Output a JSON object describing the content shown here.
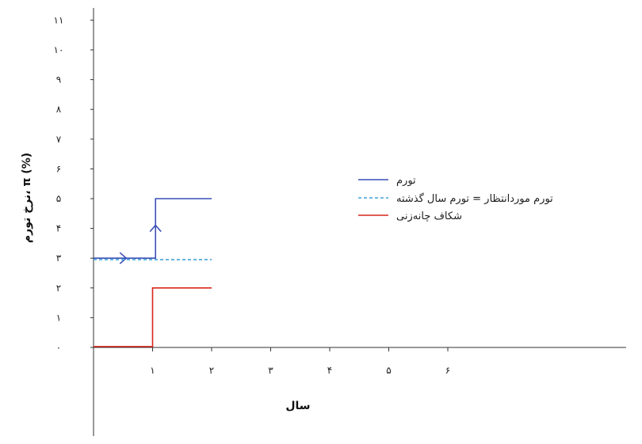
{
  "chart_data": {
    "type": "line",
    "xlabel": "سال",
    "ylabel": "نرخ تورم، π (%)",
    "xlim": [
      0,
      9
    ],
    "ylim": [
      0,
      11
    ],
    "x_ticks": [
      {
        "value": 1,
        "label": "۱"
      },
      {
        "value": 2,
        "label": "۲"
      },
      {
        "value": 3,
        "label": "۳"
      },
      {
        "value": 4,
        "label": "۴"
      },
      {
        "value": 5,
        "label": "۵"
      },
      {
        "value": 6,
        "label": "۶"
      }
    ],
    "y_ticks": [
      {
        "value": 0,
        "label": "۰"
      },
      {
        "value": 1,
        "label": "۱"
      },
      {
        "value": 2,
        "label": "۲"
      },
      {
        "value": 3,
        "label": "۳"
      },
      {
        "value": 4,
        "label": "۴"
      },
      {
        "value": 5,
        "label": "۵"
      },
      {
        "value": 6,
        "label": "۶"
      },
      {
        "value": 7,
        "label": "۷"
      },
      {
        "value": 8,
        "label": "۸"
      },
      {
        "value": 9,
        "label": "۹"
      },
      {
        "value": 10,
        "label": "۱۰"
      },
      {
        "value": 11,
        "label": "۱۱"
      }
    ],
    "series": [
      {
        "name": "تورم",
        "color": "#3b4fb8",
        "style": "solid",
        "step_points": [
          [
            0,
            3
          ],
          [
            1.05,
            3
          ],
          [
            1.05,
            5
          ],
          [
            2,
            5
          ]
        ],
        "arrows": [
          {
            "x": 0.5,
            "y": 3,
            "direction": "right"
          },
          {
            "x": 1.05,
            "y": 4,
            "direction": "up"
          }
        ]
      },
      {
        "name": "تورم موردانتظار = تورم سال گذشته",
        "color": "#3fa3d8",
        "style": "dashed",
        "step_points": [
          [
            0,
            2.95
          ],
          [
            2,
            2.95
          ]
        ]
      },
      {
        "name": "شکاف چانه‌زنی",
        "color": "#d9261c",
        "style": "solid",
        "step_points": [
          [
            0,
            0.03
          ],
          [
            1,
            0.03
          ],
          [
            1,
            2
          ],
          [
            2,
            2
          ]
        ]
      }
    ],
    "legend_position": "center-right",
    "grid": false
  }
}
